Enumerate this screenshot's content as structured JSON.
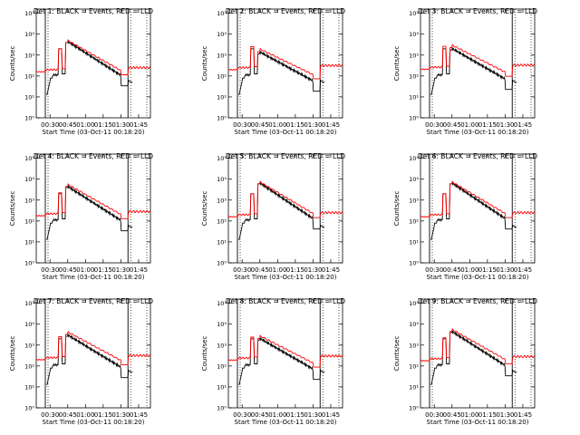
{
  "figure": {
    "background": "#ffffff",
    "events_color": "#000000",
    "lld_color": "#ff0000"
  },
  "common": {
    "ylabel": "Counts/sec",
    "xlabel": "Start Time (03-Oct-11 00:18:20)",
    "x_tick_labels": [
      "00:30",
      "00:45",
      "01:00",
      "01:15",
      "01:30",
      "01:45"
    ],
    "x_tick_minutes": [
      30,
      45,
      60,
      75,
      90,
      105
    ],
    "y_tick_labels": [
      "10⁰",
      "10¹",
      "10²",
      "10³",
      "10⁴",
      "10⁵"
    ],
    "y_tick_exponents": [
      0,
      1,
      2,
      3,
      4,
      5
    ],
    "xlim_minutes": [
      18.33,
      115
    ],
    "ylim_log10": [
      0,
      5.2
    ],
    "vertical_markers_minutes": [
      26,
      96
    ]
  },
  "chart_data": [
    {
      "type": "line",
      "title": "Det 1:  BLACK = Events, RED = LLD",
      "scale": 1.0,
      "lld_offset": 0.0,
      "series": [
        {
          "name": "Events",
          "color": "#000000"
        },
        {
          "name": "LLD",
          "color": "#ff0000"
        }
      ]
    },
    {
      "type": "line",
      "title": "Det 2:  BLACK = Events, RED = LLD",
      "scale": 0.85,
      "lld_offset": 0.1,
      "series": [
        {
          "name": "Events",
          "color": "#000000"
        },
        {
          "name": "LLD",
          "color": "#ff0000"
        }
      ]
    },
    {
      "type": "line",
      "title": "Det 3:  BLACK = Events, RED = LLD",
      "scale": 0.9,
      "lld_offset": 0.12,
      "series": [
        {
          "name": "Events",
          "color": "#000000"
        },
        {
          "name": "LLD",
          "color": "#ff0000"
        }
      ]
    },
    {
      "type": "line",
      "title": "Det 4:  BLACK = Events, RED = LLD",
      "scale": 1.0,
      "lld_offset": 0.05,
      "series": [
        {
          "name": "Events",
          "color": "#000000"
        },
        {
          "name": "LLD",
          "color": "#ff0000"
        }
      ]
    },
    {
      "type": "line",
      "title": "Det 5:  BLACK = Events, RED = LLD",
      "scale": 1.05,
      "lld_offset": 0.0,
      "series": [
        {
          "name": "Events",
          "color": "#000000"
        },
        {
          "name": "LLD",
          "color": "#ff0000"
        }
      ]
    },
    {
      "type": "line",
      "title": "Det 6:  BLACK = Events, RED = LLD",
      "scale": 1.05,
      "lld_offset": 0.0,
      "series": [
        {
          "name": "Events",
          "color": "#000000"
        },
        {
          "name": "LLD",
          "color": "#ff0000"
        }
      ]
    },
    {
      "type": "line",
      "title": "Det 7:  BLACK = Events, RED = LLD",
      "scale": 0.95,
      "lld_offset": 0.1,
      "series": [
        {
          "name": "Events",
          "color": "#000000"
        },
        {
          "name": "LLD",
          "color": "#ff0000"
        }
      ]
    },
    {
      "type": "line",
      "title": "Det 8:  BLACK = Events, RED = LLD",
      "scale": 0.9,
      "lld_offset": 0.08,
      "series": [
        {
          "name": "Events",
          "color": "#000000"
        },
        {
          "name": "LLD",
          "color": "#ff0000"
        }
      ]
    },
    {
      "type": "line",
      "title": "Det 9:  BLACK = Events, RED = LLD",
      "scale": 1.0,
      "lld_offset": 0.05,
      "series": [
        {
          "name": "Events",
          "color": "#000000"
        },
        {
          "name": "LLD",
          "color": "#ff0000"
        }
      ]
    }
  ]
}
